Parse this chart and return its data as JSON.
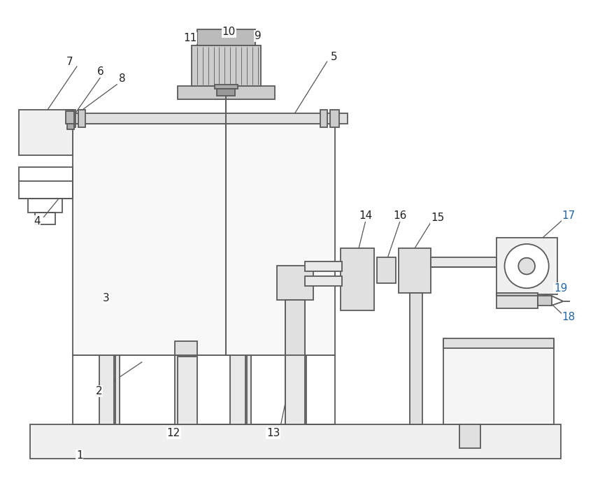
{
  "bg_color": "#ffffff",
  "lc": "#5a5a5a",
  "lw": 1.3,
  "figsize": [
    8.68,
    6.98
  ],
  "dpi": 100
}
